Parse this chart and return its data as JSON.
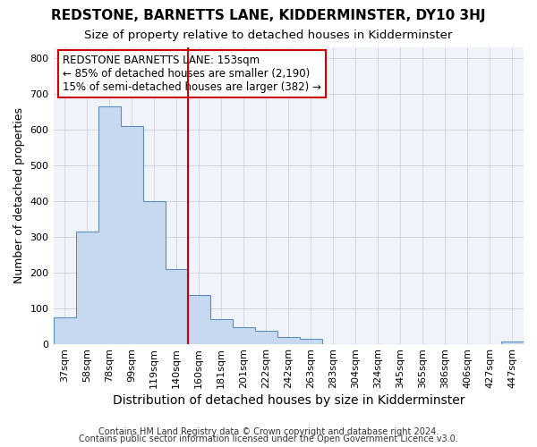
{
  "title": "REDSTONE, BARNETTS LANE, KIDDERMINSTER, DY10 3HJ",
  "subtitle": "Size of property relative to detached houses in Kidderminster",
  "xlabel": "Distribution of detached houses by size in Kidderminster",
  "ylabel": "Number of detached properties",
  "footer1": "Contains HM Land Registry data © Crown copyright and database right 2024.",
  "footer2": "Contains public sector information licensed under the Open Government Licence v3.0.",
  "categories": [
    "37sqm",
    "58sqm",
    "78sqm",
    "99sqm",
    "119sqm",
    "140sqm",
    "160sqm",
    "181sqm",
    "201sqm",
    "222sqm",
    "242sqm",
    "263sqm",
    "283sqm",
    "304sqm",
    "324sqm",
    "345sqm",
    "365sqm",
    "386sqm",
    "406sqm",
    "427sqm",
    "447sqm"
  ],
  "values": [
    75,
    315,
    665,
    610,
    400,
    208,
    138,
    70,
    47,
    38,
    20,
    15,
    0,
    0,
    0,
    0,
    0,
    0,
    0,
    0,
    8
  ],
  "bar_fill_color": "#c8d8ee",
  "bar_edge_color": "#5a8fc0",
  "vline_color": "#cc0000",
  "vline_x_index": 6,
  "annotation_line1": "REDSTONE BARNETTS LANE: 153sqm",
  "annotation_line2": "← 85% of detached houses are smaller (2,190)",
  "annotation_line3": "15% of semi-detached houses are larger (382) →",
  "annotation_box_color": "#ffffff",
  "annotation_box_edge": "#cc0000",
  "ylim": [
    0,
    830
  ],
  "background_color": "#ffffff",
  "plot_bg_color": "#f0f4fa",
  "grid_color": "#d0d8e8",
  "title_fontsize": 11,
  "subtitle_fontsize": 9.5,
  "ylabel_fontsize": 9,
  "xlabel_fontsize": 10,
  "tick_fontsize": 8,
  "annotation_fontsize": 8.5,
  "footer_fontsize": 7
}
